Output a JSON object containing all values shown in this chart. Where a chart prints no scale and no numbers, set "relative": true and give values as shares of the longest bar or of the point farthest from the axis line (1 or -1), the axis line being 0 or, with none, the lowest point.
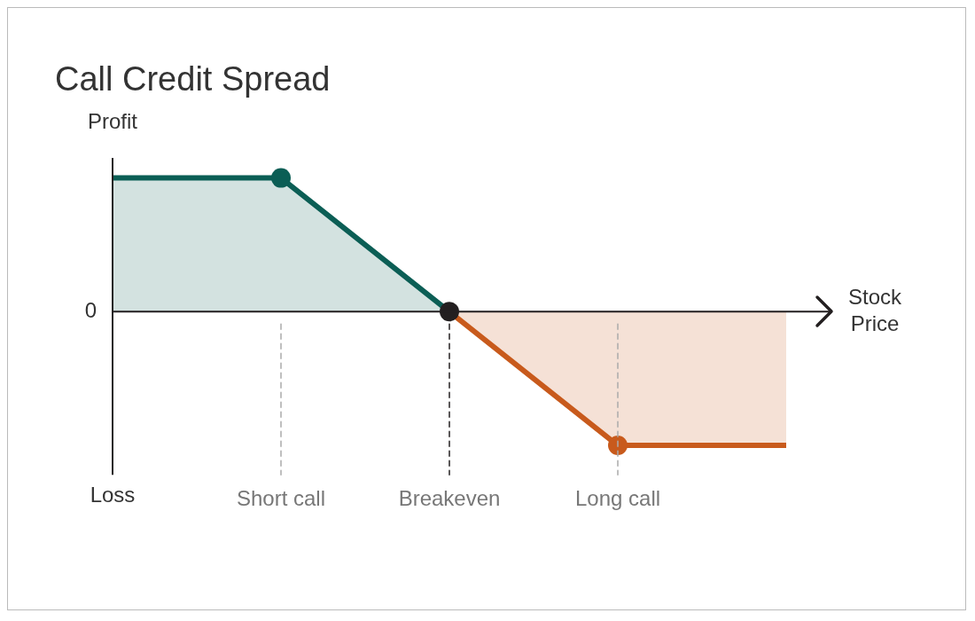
{
  "chart_data": {
    "type": "area",
    "title": "Call Credit Spread",
    "xlabel": "Stock Price",
    "relative": true,
    "categories": [
      null,
      "Short call",
      "Breakeven",
      "Long call",
      null
    ],
    "series": [
      {
        "color": "#0b5e55",
        "values": [
          1,
          1,
          0,
          null,
          null
        ]
      },
      {
        "color": "#c85a1c",
        "values": [
          null,
          null,
          0,
          -1,
          -1
        ]
      },
      {
        "type": "scatter",
        "color": "#0b5e55",
        "x": [
          "Short call"
        ],
        "values": [
          1
        ]
      },
      {
        "type": "scatter",
        "color": "#c85a1c",
        "x": [
          "Long call"
        ],
        "values": [
          -1
        ]
      },
      {
        "type": "scatter",
        "color": "#231f20",
        "x": [
          "Breakeven"
        ],
        "values": [
          0
        ]
      }
    ],
    "grid": false,
    "legend": false,
    "ref_lines": [
      {
        "axis": "y",
        "value": 0,
        "label": "0",
        "color": "#231f20"
      },
      {
        "axis": "x",
        "value": "Short call",
        "color": "#aaaaaa",
        "line_style": "dashed"
      },
      {
        "axis": "x",
        "value": "Breakeven",
        "color": "#231f20",
        "line_style": "dashed"
      },
      {
        "axis": "x",
        "value": "Long call",
        "color": "#aaaaaa",
        "line_style": "dashed"
      }
    ],
    "annotations": [
      "Profit",
      "Loss"
    ]
  }
}
